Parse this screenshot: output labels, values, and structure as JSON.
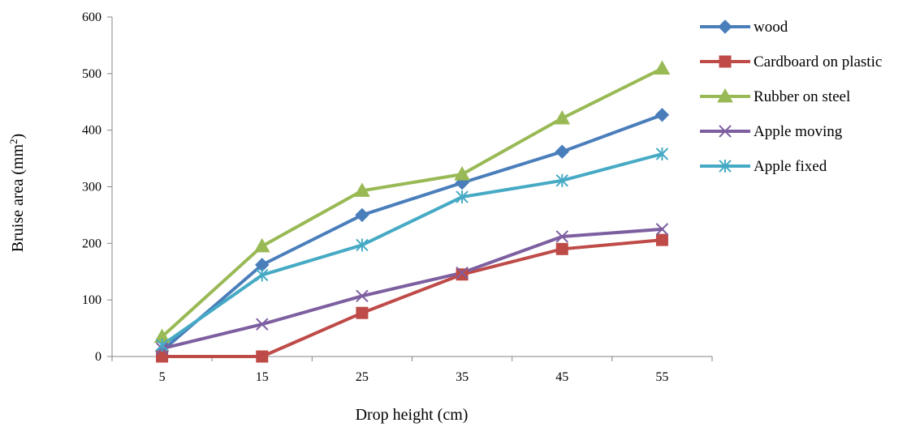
{
  "chart_data": {
    "type": "line",
    "title": "",
    "xlabel": "Drop height (cm)",
    "ylabel_main": "Bruise area (mm",
    "ylabel_sup": "2",
    "ylabel_close": ")",
    "categories": [
      "5",
      "15",
      "25",
      "35",
      "45",
      "55"
    ],
    "ylim": [
      0,
      600
    ],
    "yticks": [
      "0",
      "100",
      "200",
      "300",
      "400",
      "500",
      "600"
    ],
    "grid": false,
    "legend_position": "right",
    "series": [
      {
        "name": "wood",
        "color": "#4a7ebb",
        "marker": "diamond",
        "values": [
          10,
          162,
          250,
          307,
          362,
          427
        ]
      },
      {
        "name": "Cardboard on plastic",
        "color": "#be4b48",
        "marker": "square",
        "values": [
          0,
          0,
          77,
          145,
          190,
          206
        ]
      },
      {
        "name": "Rubber on steel",
        "color": "#98b954",
        "marker": "triangle",
        "values": [
          35,
          195,
          293,
          322,
          421,
          509
        ]
      },
      {
        "name": "Apple moving",
        "color": "#7d5fa0",
        "marker": "x",
        "values": [
          14,
          57,
          107,
          148,
          212,
          225
        ]
      },
      {
        "name": "Apple fixed",
        "color": "#46aac5",
        "marker": "star",
        "values": [
          20,
          144,
          197,
          282,
          311,
          358
        ]
      }
    ]
  }
}
